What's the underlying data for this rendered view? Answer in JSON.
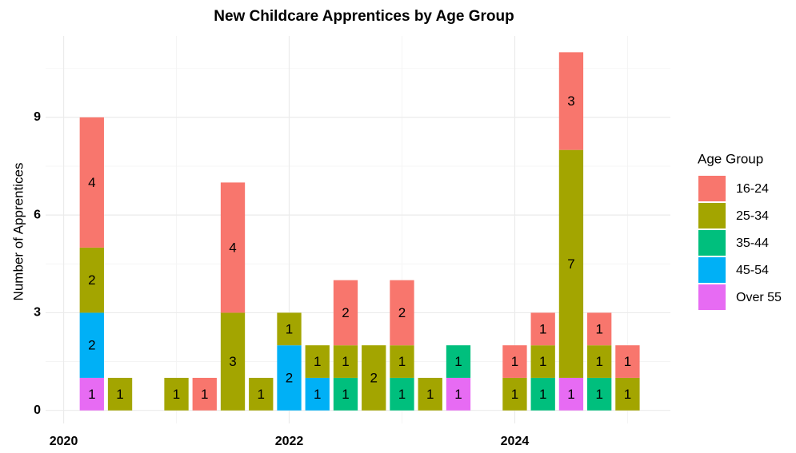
{
  "chart_data": {
    "type": "bar",
    "stacked": true,
    "title": "New Childcare Apprentices by Age Group",
    "y_label": "Number of Apprentices",
    "legend_title": "Age Group",
    "legend_position": "right",
    "grid": true,
    "x": [
      2020.25,
      2020.5,
      2021.0,
      2021.25,
      2021.5,
      2021.75,
      2022.0,
      2022.25,
      2022.5,
      2022.75,
      2023.0,
      2023.25,
      2023.5,
      2024.0,
      2024.25,
      2024.5,
      2024.75,
      2025.0
    ],
    "xlim": [
      2019.84,
      2025.38
    ],
    "xticks": [
      2020,
      2022,
      2024
    ],
    "ylim": [
      -0.4,
      11.5
    ],
    "yticks": [
      0,
      3,
      6,
      9
    ],
    "series": [
      {
        "name": "16-24",
        "color": "#F8766D",
        "values": [
          4,
          null,
          null,
          1,
          4,
          null,
          null,
          null,
          2,
          null,
          2,
          null,
          null,
          1,
          1,
          3,
          1,
          1
        ]
      },
      {
        "name": "25-34",
        "color": "#A3A500",
        "values": [
          2,
          1,
          1,
          null,
          3,
          1,
          1,
          1,
          1,
          2,
          1,
          1,
          null,
          1,
          1,
          7,
          1,
          1
        ]
      },
      {
        "name": "35-44",
        "color": "#00BF7D",
        "values": [
          null,
          null,
          null,
          null,
          null,
          null,
          null,
          null,
          1,
          null,
          1,
          null,
          1,
          null,
          1,
          null,
          1,
          null
        ]
      },
      {
        "name": "45-54",
        "color": "#00B0F6",
        "values": [
          2,
          null,
          null,
          null,
          null,
          null,
          2,
          1,
          null,
          null,
          null,
          null,
          null,
          null,
          null,
          null,
          null,
          null
        ]
      },
      {
        "name": "Over 55",
        "color": "#E76BF3",
        "values": [
          1,
          null,
          null,
          null,
          null,
          null,
          null,
          null,
          null,
          null,
          null,
          null,
          1,
          null,
          null,
          1,
          null,
          null
        ]
      }
    ]
  }
}
